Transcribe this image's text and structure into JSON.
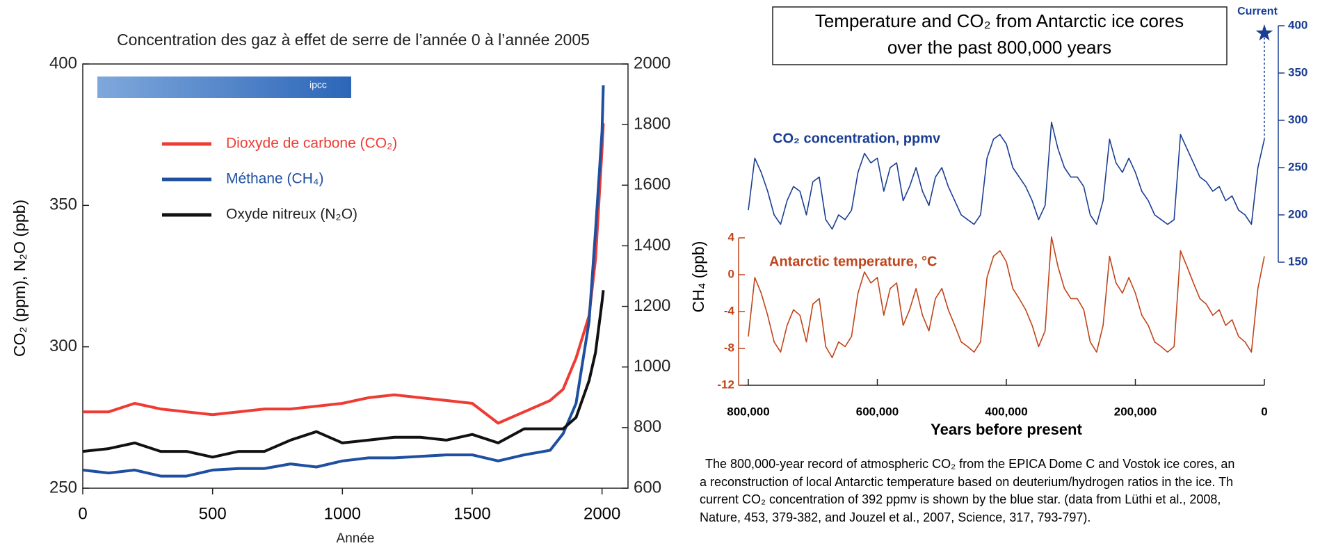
{
  "chart_data": [
    {
      "type": "line",
      "title": "Concentration des gaz à effet de serre de l’année 0 à l’année 2005",
      "x_label": "Année",
      "y_label": "CO₂ (ppm), N₂O (ppb)",
      "y2_label": "CH₄ (ppb)",
      "logo": "ipcc",
      "xlim": [
        0,
        2100
      ],
      "xticks": [
        0,
        500,
        1000,
        1500,
        2000
      ],
      "ylim": [
        250,
        400
      ],
      "yticks": [
        250,
        300,
        350,
        400
      ],
      "y2lim": [
        600,
        2000
      ],
      "y2ticks": [
        600,
        800,
        1000,
        1200,
        1400,
        1600,
        1800,
        2000
      ],
      "x": [
        0,
        100,
        200,
        300,
        400,
        500,
        600,
        700,
        800,
        900,
        1000,
        1100,
        1200,
        1300,
        1400,
        1500,
        1600,
        1700,
        1800,
        1850,
        1900,
        1950,
        1975,
        2000,
        2005
      ],
      "series": [
        {
          "name": "Dioxyde de carbone (CO₂)",
          "color": "#ee3b33",
          "values": [
            277,
            277,
            280,
            278,
            277,
            276,
            277,
            278,
            278,
            279,
            280,
            282,
            283,
            282,
            281,
            280,
            273,
            277,
            281,
            285,
            296,
            311,
            331,
            370,
            379
          ]
        },
        {
          "name": "Méthane (CH₄)",
          "color": "#1e4fa0",
          "axis": "y2",
          "values": [
            660,
            650,
            660,
            640,
            640,
            660,
            665,
            665,
            680,
            670,
            690,
            700,
            700,
            705,
            710,
            710,
            690,
            710,
            725,
            780,
            880,
            1150,
            1450,
            1780,
            1930
          ]
        },
        {
          "name": "Oxyde nitreux (N₂O)",
          "color": "#111111",
          "values": [
            263,
            264,
            266,
            263,
            263,
            261,
            263,
            263,
            267,
            270,
            266,
            267,
            268,
            268,
            267,
            269,
            266,
            271,
            271,
            271,
            275,
            288,
            298,
            316,
            320
          ]
        }
      ]
    },
    {
      "type": "line",
      "title": [
        "Temperature and CO₂ from Antarctic ice cores",
        "over the past 800,000 years"
      ],
      "x_label": "Years before present",
      "xlim": [
        800000,
        0
      ],
      "xticks": [
        {
          "value": 800000,
          "label": "800,000"
        },
        {
          "value": 600000,
          "label": "600,000"
        },
        {
          "value": 400000,
          "label": "400,000"
        },
        {
          "value": 200000,
          "label": "200,000"
        },
        0
      ],
      "ylim": [
        -12,
        4
      ],
      "yticks": [
        4,
        0,
        -4,
        -8,
        -12
      ],
      "y_axis_color": "#c0441a",
      "y2lim": [
        150,
        400
      ],
      "y2ticks": [
        150,
        200,
        250,
        300,
        350,
        400
      ],
      "y2_axis_color": "#1a3e93",
      "x": [
        800000,
        790000,
        780000,
        770000,
        760000,
        750000,
        740000,
        730000,
        720000,
        710000,
        700000,
        690000,
        680000,
        670000,
        660000,
        650000,
        640000,
        630000,
        620000,
        610000,
        600000,
        590000,
        580000,
        570000,
        560000,
        550000,
        540000,
        530000,
        520000,
        510000,
        500000,
        490000,
        480000,
        470000,
        460000,
        450000,
        440000,
        430000,
        420000,
        410000,
        400000,
        390000,
        380000,
        370000,
        360000,
        350000,
        340000,
        330000,
        320000,
        310000,
        300000,
        290000,
        280000,
        270000,
        260000,
        250000,
        240000,
        230000,
        220000,
        210000,
        200000,
        190000,
        180000,
        170000,
        160000,
        150000,
        140000,
        130000,
        120000,
        110000,
        100000,
        90000,
        80000,
        70000,
        60000,
        50000,
        40000,
        30000,
        20000,
        10000,
        0
      ],
      "series": [
        {
          "name": "CO₂ concentration, ppmv",
          "color": "#1a3e93",
          "axis": "y2",
          "values": [
            205,
            260,
            245,
            225,
            200,
            190,
            215,
            230,
            225,
            200,
            235,
            240,
            195,
            185,
            200,
            195,
            205,
            245,
            265,
            255,
            260,
            225,
            250,
            255,
            215,
            230,
            250,
            225,
            210,
            240,
            250,
            230,
            215,
            200,
            195,
            190,
            200,
            260,
            280,
            285,
            275,
            250,
            240,
            230,
            215,
            195,
            210,
            298,
            270,
            250,
            240,
            240,
            230,
            200,
            190,
            215,
            280,
            255,
            245,
            260,
            245,
            225,
            215,
            200,
            195,
            190,
            195,
            285,
            270,
            255,
            240,
            235,
            225,
            230,
            215,
            220,
            205,
            200,
            190,
            250,
            280
          ]
        },
        {
          "name": "Antarctic temperature, °C",
          "color": "#c0441a",
          "values": [
            -6.7,
            -0.3,
            -2,
            -4.4,
            -7.3,
            -8.4,
            -5.5,
            -3.8,
            -4.4,
            -7.3,
            -3.2,
            -2.6,
            -7.8,
            -9,
            -7.3,
            -7.8,
            -6.7,
            -2,
            0.3,
            -0.9,
            -0.3,
            -4.4,
            -1.5,
            -0.9,
            -5.5,
            -3.8,
            -1.5,
            -4.4,
            -6.1,
            -2.6,
            -1.5,
            -3.8,
            -5.5,
            -7.3,
            -7.8,
            -8.4,
            -7.3,
            -0.3,
            2,
            2.6,
            1.4,
            -1.5,
            -2.6,
            -3.8,
            -5.5,
            -7.8,
            -6.1,
            4.1,
            0.9,
            -1.5,
            -2.6,
            -2.6,
            -3.8,
            -7.3,
            -8.4,
            -5.5,
            2,
            -0.9,
            -2,
            -0.3,
            -2,
            -4.4,
            -5.5,
            -7.3,
            -7.8,
            -8.4,
            -7.8,
            2.6,
            0.9,
            -0.9,
            -2.6,
            -3.2,
            -4.4,
            -3.8,
            -5.5,
            -4.9,
            -6.7,
            -7.3,
            -8.4,
            -1.5,
            2
          ]
        }
      ],
      "current": {
        "label": "Current",
        "x": 0,
        "value": 392
      },
      "caption": [
        "The 800,000-year record of atmospheric CO₂ from the EPICA Dome C and Vostok ice cores, an",
        "a reconstruction of local Antarctic temperature based on deuterium/hydrogen ratios in the ice. Th",
        "current CO₂ concentration of 392 ppmv is shown by the blue star. (data from Lüthi et al., 2008,",
        "Nature, 453, 379-382, and Jouzel et al., 2007, Science, 317, 793-797)."
      ]
    }
  ]
}
